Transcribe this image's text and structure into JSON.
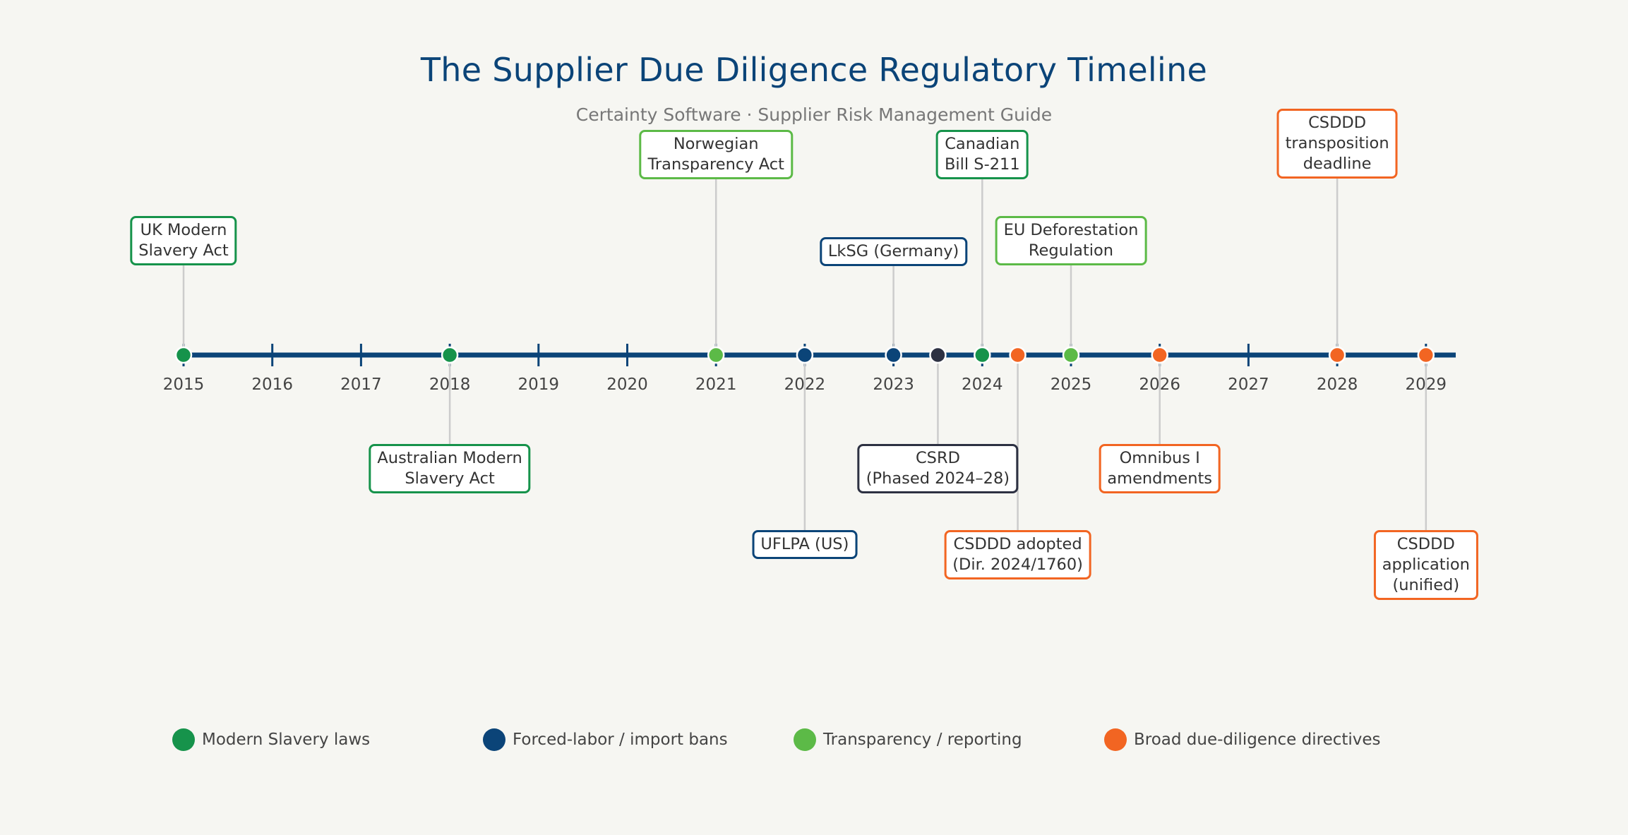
{
  "title": "The Supplier Due Diligence Regulatory Timeline",
  "subtitle": "Certainty Software · Supplier Risk Management Guide",
  "colors": {
    "axis": "#0b4478",
    "modern_slavery": "#16934b",
    "forced_labor": "#0b4478",
    "transparency": "#5cba47",
    "directives": "#f26522",
    "csrd": "#2d3142",
    "connector": "#cccccc"
  },
  "years": [
    "2015",
    "2016",
    "2017",
    "2018",
    "2019",
    "2020",
    "2021",
    "2022",
    "2023",
    "2024",
    "2025",
    "2026",
    "2027",
    "2028",
    "2029"
  ],
  "events": [
    {
      "label": "UK Modern\nSlavery Act",
      "year": 2015,
      "category": "modern_slavery",
      "side": "above",
      "tier": 2
    },
    {
      "label": "Australian Modern\nSlavery Act",
      "year": 2018,
      "category": "modern_slavery",
      "side": "below",
      "tier": 1
    },
    {
      "label": "Norwegian\nTransparency Act",
      "year": 2021,
      "category": "transparency",
      "side": "above",
      "tier": 3
    },
    {
      "label": "UFLPA (US)",
      "year": 2022,
      "category": "forced_labor",
      "side": "below",
      "tier": 2
    },
    {
      "label": "LkSG (Germany)",
      "year": 2023,
      "category": "forced_labor",
      "side": "above",
      "tier": 1
    },
    {
      "label": "CSRD\n(Phased 2024–28)",
      "year": 2023.5,
      "category": "csrd",
      "side": "below",
      "tier": 1
    },
    {
      "label": "Canadian\nBill S-211",
      "year": 2024,
      "category": "modern_slavery",
      "side": "above",
      "tier": 3
    },
    {
      "label": "CSDDD adopted\n(Dir. 2024/1760)",
      "year": 2024.4,
      "category": "directives",
      "side": "below",
      "tier": 2
    },
    {
      "label": "EU Deforestation\nRegulation",
      "year": 2025,
      "category": "transparency",
      "side": "above",
      "tier": 2
    },
    {
      "label": "Omnibus I\namendments",
      "year": 2026,
      "category": "directives",
      "side": "below",
      "tier": 1
    },
    {
      "label": "CSDDD\ntransposition\ndeadline",
      "year": 2028,
      "category": "directives",
      "side": "above",
      "tier": 4
    },
    {
      "label": "CSDDD\napplication\n(unified)",
      "year": 2029,
      "category": "directives",
      "side": "below",
      "tier": 2
    }
  ],
  "legend": [
    {
      "label": "Modern Slavery laws",
      "category": "modern_slavery"
    },
    {
      "label": "Forced-labor / import bans",
      "category": "forced_labor"
    },
    {
      "label": "Transparency / reporting",
      "category": "transparency"
    },
    {
      "label": "Broad due-diligence directives",
      "category": "directives"
    }
  ]
}
